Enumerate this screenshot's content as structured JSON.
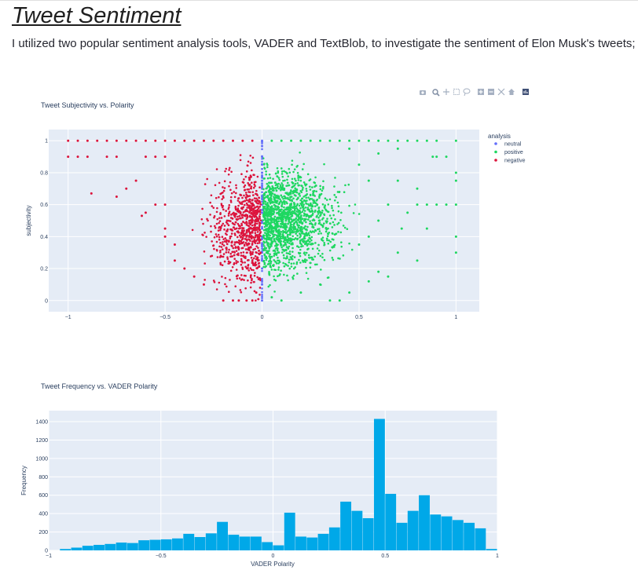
{
  "page": {
    "title": "Tweet Sentiment",
    "intro": "I utilized two popular sentiment analysis tools, VADER and TextBlob, to investigate the sentiment of Elon Musk's tweets;"
  },
  "modebar": {
    "icons": [
      "camera-icon",
      "zoom-icon",
      "pan-icon",
      "box-select-icon",
      "lasso-icon",
      "zoom-in-icon",
      "zoom-out-icon",
      "autoscale-icon",
      "home-icon",
      "plotly-logo-icon"
    ]
  },
  "colors": {
    "plot_bg": "#e5ecf6",
    "neutral": "#636efa",
    "positive": "#1ed760",
    "negative": "#dc143c",
    "bar": "#00a8e8"
  },
  "chart_data": [
    {
      "type": "scatter",
      "title": "Tweet Subjectivity vs. Polarity",
      "xlabel": "",
      "ylabel": "subjectivity",
      "xlim": [
        -1.1,
        1.12
      ],
      "ylim": [
        -0.07,
        1.07
      ],
      "xticks": [
        -1,
        -0.5,
        0,
        0.5,
        1
      ],
      "xtick_labels": [
        "−1",
        "−0.5",
        "0",
        "0.5",
        "1"
      ],
      "yticks": [
        0,
        0.2,
        0.4,
        0.6,
        0.8,
        1
      ],
      "ytick_labels": [
        "0",
        "0.2",
        "0.4",
        "0.6",
        "0.8",
        "1"
      ],
      "grid": true,
      "legend": {
        "title": "analysis",
        "position": "top-right"
      },
      "series": [
        {
          "name": "neutral",
          "color": "#636efa",
          "points": [
            [
              0,
              0
            ],
            [
              0,
              0.1
            ],
            [
              0,
              0.2
            ],
            [
              0,
              0.25
            ],
            [
              0,
              0.3
            ],
            [
              0,
              0.35
            ],
            [
              0,
              0.4
            ],
            [
              0,
              0.45
            ],
            [
              0,
              0.5
            ],
            [
              0,
              0.55
            ],
            [
              0,
              0.6
            ],
            [
              0,
              0.65
            ],
            [
              0,
              0.7
            ],
            [
              0,
              0.75
            ],
            [
              0,
              0.8
            ],
            [
              0,
              0.85
            ],
            [
              0,
              0.9
            ],
            [
              0,
              1
            ]
          ]
        },
        {
          "name": "positive",
          "color": "#1ed760",
          "points": [
            [
              0.05,
              1
            ],
            [
              0.1,
              1
            ],
            [
              0.15,
              1
            ],
            [
              0.2,
              1
            ],
            [
              0.25,
              1
            ],
            [
              0.3,
              1
            ],
            [
              0.35,
              1
            ],
            [
              0.4,
              1
            ],
            [
              0.45,
              1
            ],
            [
              0.5,
              1
            ],
            [
              0.55,
              1
            ],
            [
              0.6,
              1
            ],
            [
              0.65,
              1
            ],
            [
              0.7,
              1
            ],
            [
              0.75,
              1
            ],
            [
              0.8,
              1
            ],
            [
              0.85,
              1
            ],
            [
              0.9,
              1
            ],
            [
              1,
              1
            ],
            [
              0.9,
              0.9
            ],
            [
              0.88,
              0.9
            ],
            [
              0.95,
              0.9
            ],
            [
              1,
              0.8
            ],
            [
              1,
              0.75
            ],
            [
              0.95,
              0.6
            ],
            [
              0.9,
              0.6
            ],
            [
              0.85,
              0.6
            ],
            [
              1,
              0.6
            ],
            [
              1,
              0.4
            ],
            [
              1,
              0.3
            ],
            [
              0.85,
              0.45
            ],
            [
              0.8,
              0.7
            ],
            [
              0.8,
              0.6
            ],
            [
              0.8,
              0.25
            ],
            [
              0.75,
              0.55
            ],
            [
              0.72,
              0.45
            ],
            [
              0.7,
              0.3
            ],
            [
              0.6,
              0.18
            ],
            [
              0.65,
              0.15
            ],
            [
              0.55,
              0.12
            ],
            [
              0.45,
              0.05
            ],
            [
              0.4,
              0
            ],
            [
              0.35,
              0
            ],
            [
              0.1,
              0
            ],
            [
              0.05,
              0.02
            ],
            [
              0.2,
              0.05
            ],
            [
              0.3,
              0.1
            ],
            [
              0.5,
              0.35
            ],
            [
              0.55,
              0.4
            ],
            [
              0.6,
              0.5
            ],
            [
              0.65,
              0.6
            ],
            [
              0.7,
              0.75
            ],
            [
              0.55,
              0.75
            ],
            [
              0.5,
              0.85
            ],
            [
              0.45,
              0.95
            ],
            [
              0.6,
              0.92
            ],
            [
              0.7,
              0.95
            ]
          ]
        },
        {
          "name": "negative",
          "color": "#dc143c",
          "points": [
            [
              -1,
              1
            ],
            [
              -0.95,
              1
            ],
            [
              -0.9,
              1
            ],
            [
              -0.85,
              1
            ],
            [
              -0.8,
              1
            ],
            [
              -0.75,
              1
            ],
            [
              -0.7,
              1
            ],
            [
              -0.65,
              1
            ],
            [
              -0.6,
              1
            ],
            [
              -0.55,
              1
            ],
            [
              -0.5,
              1
            ],
            [
              -0.45,
              1
            ],
            [
              -0.4,
              1
            ],
            [
              -0.35,
              1
            ],
            [
              -0.3,
              1
            ],
            [
              -0.25,
              1
            ],
            [
              -0.2,
              1
            ],
            [
              -0.15,
              1
            ],
            [
              -0.1,
              1
            ],
            [
              -0.05,
              1
            ],
            [
              -1,
              0.9
            ],
            [
              -0.95,
              0.9
            ],
            [
              -0.9,
              0.9
            ],
            [
              -0.8,
              0.9
            ],
            [
              -0.75,
              0.9
            ],
            [
              -0.6,
              0.9
            ],
            [
              -0.55,
              0.9
            ],
            [
              -0.5,
              0.9
            ],
            [
              -0.88,
              0.67
            ],
            [
              -0.75,
              0.65
            ],
            [
              -0.7,
              0.7
            ],
            [
              -0.65,
              0.75
            ],
            [
              -0.62,
              0.53
            ],
            [
              -0.6,
              0.55
            ],
            [
              -0.55,
              0.6
            ],
            [
              -0.5,
              0.6
            ],
            [
              -0.5,
              0.45
            ],
            [
              -0.5,
              0.4
            ],
            [
              -0.45,
              0.35
            ],
            [
              -0.45,
              0.25
            ],
            [
              -0.4,
              0.2
            ],
            [
              -0.35,
              0.15
            ],
            [
              -0.3,
              0.1
            ],
            [
              -0.2,
              0
            ],
            [
              -0.15,
              0
            ],
            [
              -0.12,
              0
            ],
            [
              -0.08,
              0
            ],
            [
              -0.05,
              0
            ],
            [
              -0.03,
              0.05
            ]
          ]
        }
      ]
    },
    {
      "type": "bar",
      "title": "Tweet Frequency vs. VADER Polarity",
      "xlabel": "VADER Polarity",
      "ylabel": "Frequency",
      "xlim": [
        -1,
        1
      ],
      "ylim": [
        0,
        1520
      ],
      "xticks": [
        -1,
        -0.5,
        0,
        0.5,
        1
      ],
      "xtick_labels": [
        "−1",
        "−0.5",
        "0",
        "0.5",
        "1"
      ],
      "yticks": [
        0,
        200,
        400,
        600,
        800,
        1000,
        1200,
        1400
      ],
      "ytick_labels": [
        "0",
        "200",
        "400",
        "600",
        "800",
        "1000",
        "1200",
        "1400"
      ],
      "grid": true,
      "bin_start": -0.95,
      "bin_width": 0.05,
      "values": [
        15,
        30,
        50,
        60,
        70,
        85,
        80,
        110,
        115,
        120,
        130,
        180,
        145,
        185,
        310,
        170,
        150,
        150,
        90,
        55,
        410,
        150,
        140,
        180,
        250,
        530,
        430,
        350,
        1430,
        615,
        300,
        430,
        600,
        390,
        370,
        330,
        300,
        240,
        15
      ]
    }
  ]
}
